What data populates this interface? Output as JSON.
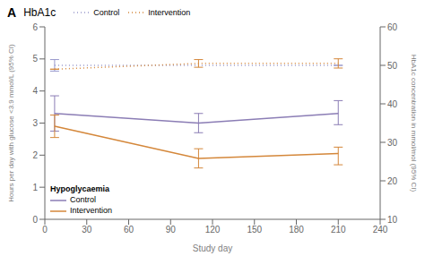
{
  "chart_data": {
    "type": "line",
    "title": "HbA1c",
    "annotations": [
      "A",
      "Hypoglycaemia"
    ],
    "xlabel": "Study day",
    "ylabel": "Hours per day with glucose <3.9 mmol/L (95% CI)",
    "y2label": "HbA1c concentration in mmol/mol (95% CI)",
    "xlim": [
      0,
      240
    ],
    "xticks": [
      0,
      30,
      60,
      90,
      120,
      150,
      180,
      210,
      240
    ],
    "ylim": [
      0,
      6
    ],
    "yticks": [
      0,
      1,
      2,
      3,
      4,
      5,
      6
    ],
    "y2lim": [
      10,
      60
    ],
    "y2ticks": [
      10,
      20,
      30,
      40,
      50,
      60
    ],
    "grid": false,
    "series": [
      {
        "name": "Control",
        "color": "#9999CC",
        "axis": "y2",
        "line_style": "dotted",
        "legend": "upper left",
        "x": [
          7,
          210
        ],
        "values": [
          50,
          50
        ],
        "yerr_low": [
          1.5,
          0.0
        ],
        "yerr_high": [
          1.5,
          0.0
        ]
      },
      {
        "name": "Intervention",
        "color": "#D4873A",
        "axis": "y2",
        "line_style": "dotted",
        "legend": "upper left",
        "x": [
          7,
          110,
          210
        ],
        "values": [
          49,
          50.5,
          50.5
        ],
        "yerr_low": [
          0.0,
          1.0,
          1.2
        ],
        "yerr_high": [
          0.0,
          1.0,
          1.2
        ]
      },
      {
        "name": "Control",
        "color": "#8B7DB5",
        "line_style": "solid",
        "legend": "lower left",
        "x": [
          7,
          110,
          210
        ],
        "values": [
          3.3,
          3.0,
          3.3
        ],
        "yerr_low": [
          0.55,
          0.3,
          0.35
        ],
        "yerr_high": [
          0.55,
          0.3,
          0.4
        ]
      },
      {
        "name": "Intervention",
        "color": "#D4873A",
        "line_style": "solid",
        "legend": "lower left",
        "x": [
          7,
          110,
          210
        ],
        "values": [
          2.9,
          1.9,
          2.05
        ],
        "yerr_low": [
          0.35,
          0.3,
          0.35
        ],
        "yerr_high": [
          0.35,
          0.3,
          0.2
        ]
      }
    ]
  }
}
